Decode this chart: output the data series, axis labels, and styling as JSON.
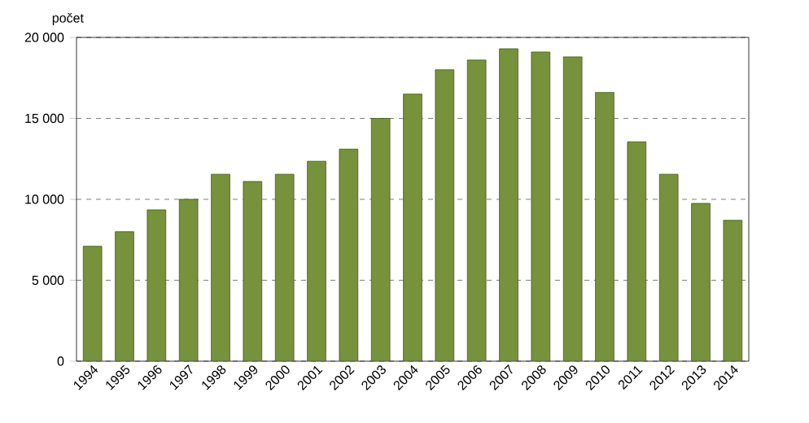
{
  "chart_data": {
    "type": "bar",
    "ylabel": "počet",
    "categories": [
      "1994",
      "1995",
      "1996",
      "1997",
      "1998",
      "1999",
      "2000",
      "2001",
      "2002",
      "2003",
      "2004",
      "2005",
      "2006",
      "2007",
      "2008",
      "2009",
      "2010",
      "2011",
      "2012",
      "2013",
      "2014"
    ],
    "values": [
      7100,
      8000,
      9350,
      10000,
      11550,
      11100,
      11550,
      12350,
      13100,
      15000,
      16500,
      18000,
      18600,
      19300,
      19100,
      18800,
      16600,
      13550,
      11550,
      9750,
      8700
    ],
    "color": "#76923c",
    "ylim": [
      0,
      20000
    ],
    "yticks": [
      {
        "value": 0,
        "label": "0"
      },
      {
        "value": 5000,
        "label": "5 000"
      },
      {
        "value": 10000,
        "label": "10 000"
      },
      {
        "value": 15000,
        "label": "15 000"
      },
      {
        "value": 20000,
        "label": "20 000"
      }
    ],
    "grid": "y"
  }
}
